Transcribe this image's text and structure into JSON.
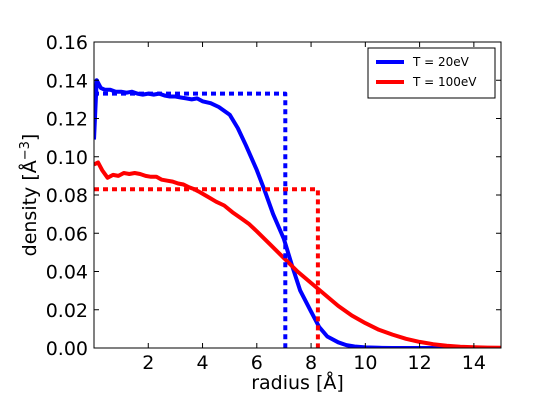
{
  "chart_data": {
    "type": "line",
    "xlabel": "radius [Å]",
    "ylabel_text": "density [Å",
    "ylabel_sup": "−3",
    "ylabel_end": "]",
    "xlim": [
      0,
      15
    ],
    "ylim": [
      0,
      0.16
    ],
    "xticks": [
      2,
      4,
      6,
      8,
      10,
      12,
      14
    ],
    "xtick_labels": [
      "2",
      "4",
      "6",
      "8",
      "10",
      "12",
      "14"
    ],
    "yticks": [
      0.0,
      0.02,
      0.04,
      0.06,
      0.08,
      0.1,
      0.12,
      0.14,
      0.16
    ],
    "ytick_labels": [
      "0.00",
      "0.02",
      "0.04",
      "0.06",
      "0.08",
      "0.10",
      "0.12",
      "0.14",
      "0.16"
    ],
    "grid": false,
    "legend_position": "top-right",
    "series": [
      {
        "name": "T = 20eV",
        "color": "#0000ff",
        "style": "solid",
        "x": [
          0,
          0.1,
          0.25,
          0.4,
          0.6,
          0.8,
          1.0,
          1.2,
          1.4,
          1.6,
          1.8,
          2.0,
          2.2,
          2.4,
          2.6,
          2.8,
          3.0,
          3.2,
          3.4,
          3.6,
          3.8,
          4.0,
          4.3,
          4.6,
          5.0,
          5.3,
          5.6,
          6.0,
          6.3,
          6.6,
          7.0,
          7.3,
          7.6,
          8.0,
          8.3,
          8.6,
          9.0,
          9.3,
          9.6,
          10.0,
          10.5,
          11.0,
          12.0,
          13.0,
          15.0
        ],
        "y": [
          0.109,
          0.14,
          0.136,
          0.135,
          0.135,
          0.134,
          0.134,
          0.1335,
          0.134,
          0.133,
          0.1325,
          0.133,
          0.1325,
          0.133,
          0.132,
          0.1315,
          0.1315,
          0.131,
          0.1305,
          0.13,
          0.1305,
          0.129,
          0.128,
          0.126,
          0.122,
          0.115,
          0.106,
          0.093,
          0.082,
          0.07,
          0.057,
          0.043,
          0.03,
          0.019,
          0.011,
          0.006,
          0.003,
          0.0015,
          0.0008,
          0.0003,
          0.0001,
          0,
          0,
          0,
          0
        ]
      },
      {
        "name": "T = 100eV",
        "color": "#ff0000",
        "style": "solid",
        "x": [
          0,
          0.15,
          0.3,
          0.5,
          0.7,
          0.9,
          1.1,
          1.3,
          1.5,
          1.7,
          1.9,
          2.1,
          2.3,
          2.5,
          2.7,
          2.9,
          3.1,
          3.3,
          3.5,
          3.7,
          3.9,
          4.2,
          4.5,
          4.8,
          5.1,
          5.4,
          5.7,
          6.0,
          6.5,
          7.0,
          7.5,
          8.0,
          8.5,
          9.0,
          9.5,
          10.0,
          10.5,
          11.0,
          11.5,
          12.0,
          12.5,
          13.0,
          13.5,
          14.0,
          14.5,
          15.0
        ],
        "y": [
          0.096,
          0.097,
          0.093,
          0.089,
          0.0905,
          0.09,
          0.0915,
          0.091,
          0.0915,
          0.091,
          0.09,
          0.0895,
          0.0895,
          0.088,
          0.0875,
          0.087,
          0.086,
          0.0855,
          0.084,
          0.083,
          0.0815,
          0.079,
          0.0765,
          0.0745,
          0.071,
          0.068,
          0.065,
          0.061,
          0.054,
          0.047,
          0.04,
          0.034,
          0.028,
          0.022,
          0.017,
          0.013,
          0.0095,
          0.007,
          0.0048,
          0.0032,
          0.002,
          0.0012,
          0.0007,
          0.0004,
          0.0002,
          0.0001
        ]
      },
      {
        "name": "",
        "color": "#0000ff",
        "style": "dotted",
        "x": [
          0,
          7.05,
          7.05
        ],
        "y": [
          0.133,
          0.133,
          0
        ]
      },
      {
        "name": "",
        "color": "#ff0000",
        "style": "dotted",
        "x": [
          0,
          8.25,
          8.25
        ],
        "y": [
          0.083,
          0.083,
          0
        ]
      }
    ]
  }
}
